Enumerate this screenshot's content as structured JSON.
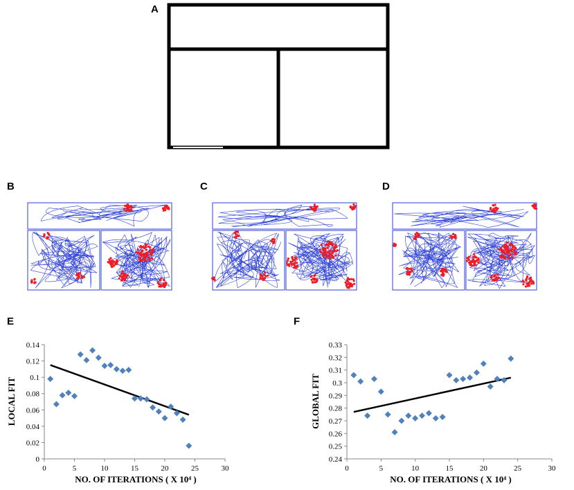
{
  "panels": {
    "a": "A",
    "b": "B",
    "c": "C",
    "d": "D",
    "e": "E",
    "f": "F"
  },
  "colors": {
    "trajectory": "#2b3fd6",
    "firing": "#ee1c25",
    "marker": "#4f81bd",
    "trend": "#000000"
  },
  "chart_data": [
    {
      "id": "E",
      "type": "scatter",
      "title": "",
      "xlabel": "NO. OF ITERATIONS ( X 10⁴ )",
      "ylabel": "LOCAL FIT",
      "xlim": [
        0,
        30
      ],
      "ylim": [
        0,
        0.14
      ],
      "xticks": [
        "0",
        "5",
        "10",
        "15",
        "20",
        "25",
        "30"
      ],
      "yticks": [
        "0",
        "0.02",
        "0.04",
        "0.06",
        "0.08",
        "0.1",
        "0.12",
        "0.14"
      ],
      "x": [
        1,
        2,
        3,
        4,
        5,
        6,
        7,
        8,
        9,
        10,
        11,
        12,
        13,
        14,
        15,
        16,
        17,
        18,
        19,
        20,
        21,
        22,
        23,
        24
      ],
      "y": [
        0.098,
        0.067,
        0.078,
        0.081,
        0.077,
        0.128,
        0.121,
        0.133,
        0.124,
        0.114,
        0.115,
        0.11,
        0.108,
        0.109,
        0.074,
        0.074,
        0.073,
        0.063,
        0.058,
        0.05,
        0.064,
        0.056,
        0.048,
        0.016
      ],
      "trendline": {
        "x": [
          1,
          24
        ],
        "y": [
          0.115,
          0.054
        ]
      }
    },
    {
      "id": "F",
      "type": "scatter",
      "title": "",
      "xlabel": "NO. OF ITERATIONS ( X 10⁴ )",
      "ylabel": "GLOBAL FIT",
      "xlim": [
        0,
        30
      ],
      "ylim": [
        0.24,
        0.33
      ],
      "xticks": [
        "0",
        "5",
        "10",
        "15",
        "20",
        "25",
        "30"
      ],
      "yticks": [
        "0.24",
        "0.25",
        "0.26",
        "0.27",
        "0.28",
        "0.29",
        "0.3",
        "0.31",
        "0.32",
        "0.33"
      ],
      "x": [
        1,
        2,
        3,
        4,
        5,
        6,
        7,
        8,
        9,
        10,
        11,
        12,
        13,
        14,
        15,
        16,
        17,
        18,
        19,
        20,
        21,
        22,
        23,
        24
      ],
      "y": [
        0.306,
        0.301,
        0.274,
        0.303,
        0.293,
        0.275,
        0.261,
        0.27,
        0.274,
        0.272,
        0.274,
        0.276,
        0.272,
        0.273,
        0.306,
        0.302,
        0.303,
        0.304,
        0.308,
        0.315,
        0.297,
        0.303,
        0.302,
        0.319
      ],
      "trendline": {
        "x": [
          1,
          24
        ],
        "y": [
          0.277,
          0.304
        ]
      }
    }
  ]
}
